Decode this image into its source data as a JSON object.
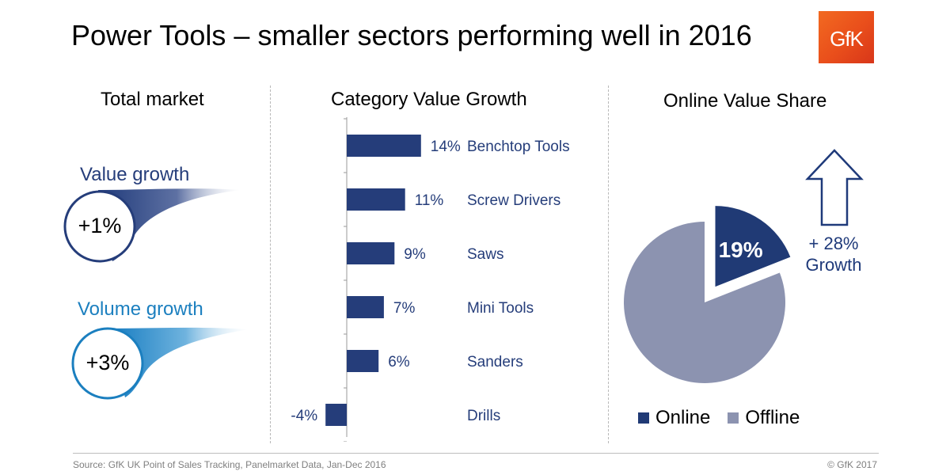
{
  "title": "Power Tools – smaller sectors performing well in 2016",
  "logo": {
    "text": "GfK"
  },
  "colors": {
    "navy": "#253d7a",
    "teal": "#1b7fbf",
    "online": "#203a75",
    "offline": "#8c93b0",
    "arrow": "#1f3a7a"
  },
  "total_market": {
    "title": "Total market",
    "value": {
      "label": "Value growth",
      "figure": "+1%"
    },
    "volume": {
      "label": "Volume growth",
      "figure": "+3%"
    }
  },
  "category_chart": {
    "title": "Category Value Growth"
  },
  "online_share": {
    "title": "Online Value Share",
    "slice_label": "19%",
    "growth_note_line1": "+ 28%",
    "growth_note_line2": "Growth",
    "legend": [
      "Online",
      "Offline"
    ]
  },
  "footer": {
    "source": "Source: GfK UK Point of Sales  Tracking, Panelmarket Data, Jan-Dec  2016",
    "copyright": "© GfK 2017"
  },
  "chart_data": [
    {
      "type": "bar",
      "orientation": "horizontal",
      "title": "Category Value Growth",
      "categories": [
        "Benchtop Tools",
        "Screw Drivers",
        "Saws",
        "Mini Tools",
        "Sanders",
        "Drills"
      ],
      "values": [
        14,
        11,
        9,
        7,
        6,
        -4
      ],
      "value_labels": [
        "14%",
        "11%",
        "9%",
        "7%",
        "6%",
        "-4%"
      ],
      "unit": "%"
    },
    {
      "type": "pie",
      "title": "Online Value Share",
      "categories": [
        "Online",
        "Offline"
      ],
      "values": [
        19,
        81
      ],
      "value_labels": [
        "19%",
        ""
      ],
      "exploded": "Online"
    }
  ]
}
